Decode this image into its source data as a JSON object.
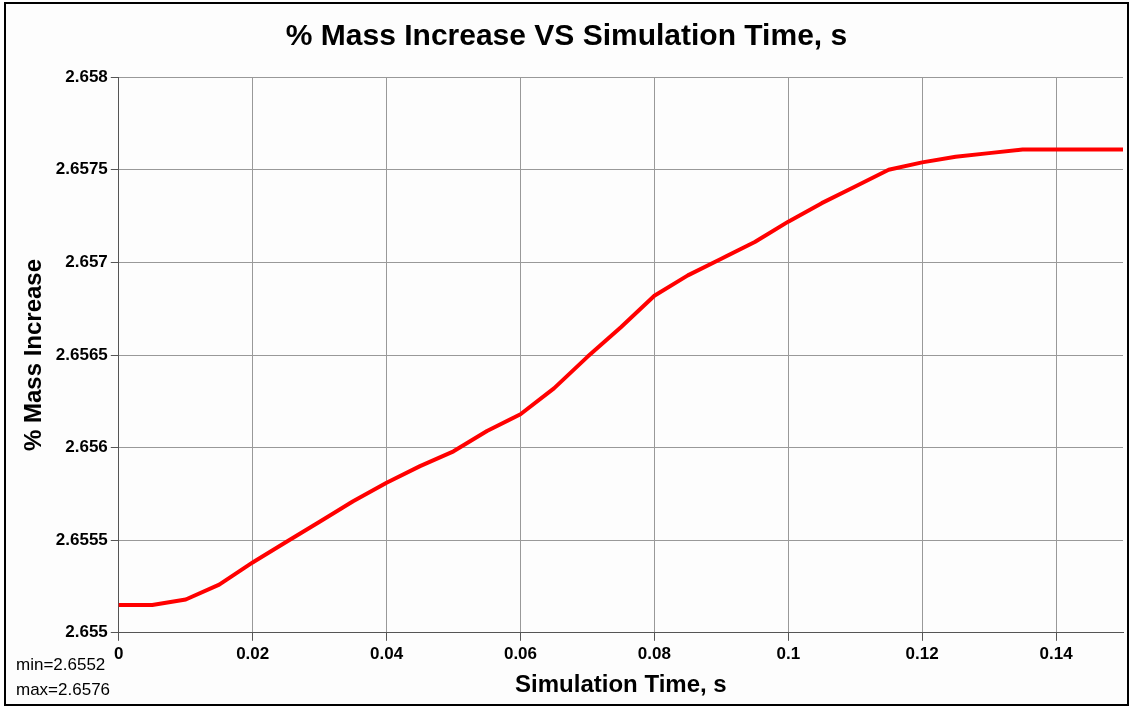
{
  "chart_data": {
    "type": "line",
    "title": "% Mass Increase VS Simulation Time, s",
    "xlabel": "Simulation Time, s",
    "ylabel": "% Mass Increase",
    "x": [
      0,
      0.005,
      0.01,
      0.015,
      0.02,
      0.025,
      0.03,
      0.035,
      0.04,
      0.045,
      0.05,
      0.055,
      0.06,
      0.065,
      0.07,
      0.075,
      0.08,
      0.085,
      0.09,
      0.095,
      0.1,
      0.105,
      0.11,
      0.115,
      0.12,
      0.125,
      0.13,
      0.135,
      0.15
    ],
    "series": [
      {
        "color": "#ff0000",
        "values": [
          2.65515,
          2.65515,
          2.65518,
          2.65526,
          2.65538,
          2.65549,
          2.6556,
          2.65571,
          2.65581,
          2.6559,
          2.65598,
          2.65609,
          2.65618,
          2.65632,
          2.65649,
          2.65665,
          2.65682,
          2.65693,
          2.65702,
          2.65711,
          2.65722,
          2.65732,
          2.65741,
          2.6575,
          2.65754,
          2.65757,
          2.65759,
          2.65761,
          2.65761
        ]
      }
    ],
    "xlim": [
      0,
      0.15
    ],
    "xticks": [
      0,
      0.02,
      0.04,
      0.06,
      0.08,
      0.1,
      0.12,
      0.14
    ],
    "ylim": [
      2.655,
      2.658
    ],
    "yticks": [
      2.655,
      2.6555,
      2.656,
      2.6565,
      2.657,
      2.6575,
      2.658
    ],
    "grid": true,
    "legend": false,
    "marker": "none",
    "line_style": "solid",
    "annotations": [
      "min=2.6552",
      "max=2.6576"
    ]
  }
}
